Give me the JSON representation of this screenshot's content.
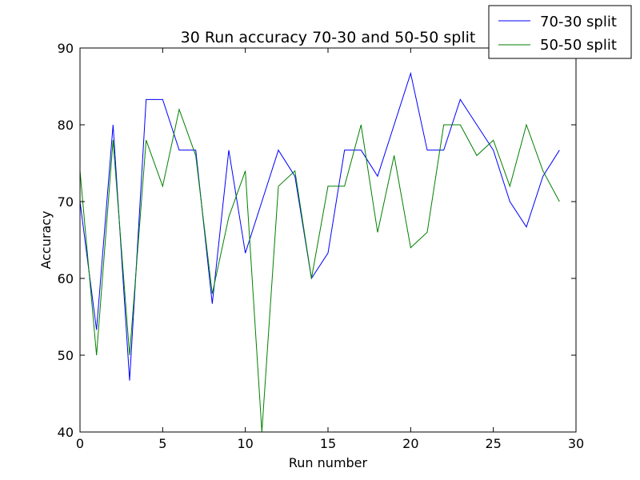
{
  "chart_data": {
    "type": "line",
    "title": "30 Run accuracy 70-30 and 50-50 split",
    "xlabel": "Run number",
    "ylabel": "Accuracy",
    "xlim": [
      0,
      30
    ],
    "ylim": [
      40,
      90
    ],
    "xticks": [
      0,
      5,
      10,
      15,
      20,
      25,
      30
    ],
    "yticks": [
      40,
      50,
      60,
      70,
      80,
      90
    ],
    "grid": false,
    "legend_position": "top-right",
    "x": [
      0,
      1,
      2,
      3,
      4,
      5,
      6,
      7,
      8,
      9,
      10,
      11,
      12,
      13,
      14,
      15,
      16,
      17,
      18,
      19,
      20,
      21,
      22,
      23,
      24,
      25,
      26,
      27,
      28,
      29
    ],
    "series": [
      {
        "name": "70-30 split",
        "color": "#0000ff",
        "values": [
          70,
          53.3,
          80,
          46.7,
          83.3,
          83.3,
          76.7,
          76.7,
          56.7,
          76.7,
          63.3,
          70,
          76.7,
          73.3,
          60,
          63.3,
          76.7,
          76.7,
          73.3,
          80,
          86.7,
          76.7,
          76.7,
          83.3,
          80,
          76.7,
          70,
          66.7,
          73.3,
          76.7
        ]
      },
      {
        "name": "50-50 split",
        "color": "#008000",
        "values": [
          74,
          50,
          78,
          50,
          78,
          72,
          82,
          76,
          58,
          68,
          74,
          40,
          72,
          74,
          60,
          72,
          72,
          80,
          66,
          76,
          64,
          66,
          80,
          80,
          76,
          78,
          72,
          80,
          74,
          70
        ]
      }
    ]
  }
}
